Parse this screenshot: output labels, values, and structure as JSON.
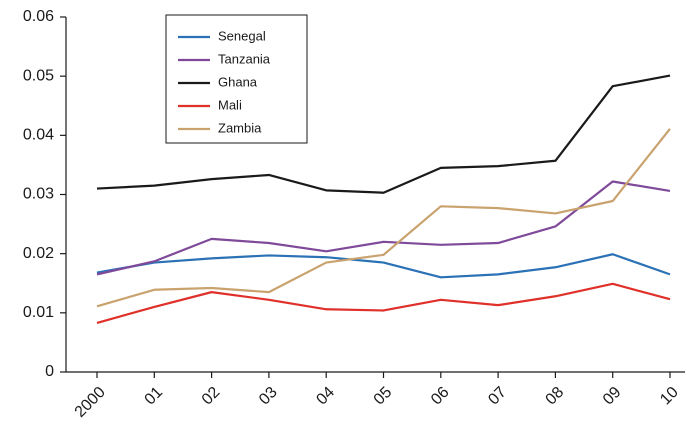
{
  "chart_data": {
    "type": "line",
    "categories": [
      "2000",
      "01",
      "02",
      "03",
      "04",
      "05",
      "06",
      "07",
      "08",
      "09",
      "10"
    ],
    "series": [
      {
        "name": "Senegal",
        "color": "#2a72b5",
        "values": [
          0.0168,
          0.0185,
          0.0192,
          0.0197,
          0.0194,
          0.0185,
          0.016,
          0.0165,
          0.0177,
          0.0199,
          0.0165
        ]
      },
      {
        "name": "Tanzania",
        "color": "#7f4a9a",
        "values": [
          0.0165,
          0.0187,
          0.0225,
          0.0218,
          0.0204,
          0.022,
          0.0215,
          0.0218,
          0.0246,
          0.0322,
          0.0306
        ]
      },
      {
        "name": "Ghana",
        "color": "#1a1a1a",
        "values": [
          0.031,
          0.0315,
          0.0326,
          0.0333,
          0.0307,
          0.0303,
          0.0345,
          0.0348,
          0.0357,
          0.0483,
          0.0501
        ]
      },
      {
        "name": "Mali",
        "color": "#e0302a",
        "values": [
          0.0083,
          0.011,
          0.0135,
          0.0122,
          0.0106,
          0.0104,
          0.0122,
          0.0113,
          0.0128,
          0.0149,
          0.0123
        ]
      },
      {
        "name": "Zambia",
        "color": "#c9a26e",
        "values": [
          0.0111,
          0.0139,
          0.0142,
          0.0135,
          0.0185,
          0.0198,
          0.028,
          0.0277,
          0.0268,
          0.0289,
          0.0411
        ]
      }
    ],
    "ylim": [
      0,
      0.06
    ],
    "yticks": [
      0,
      0.01,
      0.02,
      0.03,
      0.04,
      0.05,
      0.06
    ],
    "grid": false
  }
}
